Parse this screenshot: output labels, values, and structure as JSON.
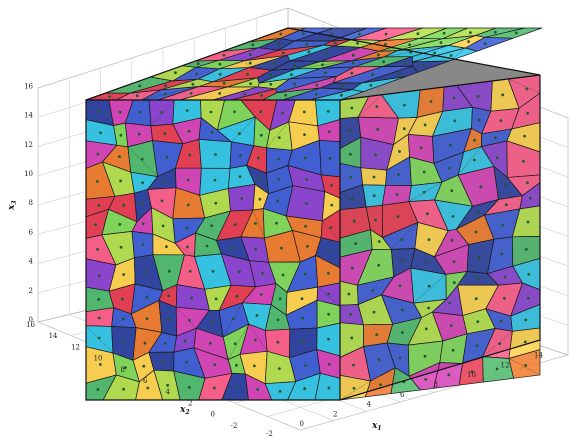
{
  "axes": {
    "x1": {
      "label": "x",
      "subscript": "1",
      "ticks": [
        "-2",
        "0",
        "2",
        "4",
        "6",
        "8",
        "10",
        "12",
        "14"
      ]
    },
    "x2": {
      "label": "x",
      "subscript": "2",
      "ticks": [
        "-2",
        "0",
        "2",
        "4",
        "6",
        "8",
        "10",
        "12",
        "14",
        "16"
      ]
    },
    "x3": {
      "label": "x",
      "subscript": "3",
      "ticks": [
        "0",
        "2",
        "4",
        "6",
        "8",
        "10",
        "12",
        "14",
        "16"
      ]
    }
  },
  "grid": true,
  "diagram": {
    "type": "3d-voronoi-polycrystal",
    "grain_palette": [
      "#e8384f",
      "#3b5bd6",
      "#7ed957",
      "#f07a2a",
      "#8a3fd1",
      "#2fc6e8",
      "#ffd24a",
      "#d63fb6",
      "#4dbb6b",
      "#2a3fa0",
      "#b4e04a",
      "#ff5a8a"
    ]
  }
}
